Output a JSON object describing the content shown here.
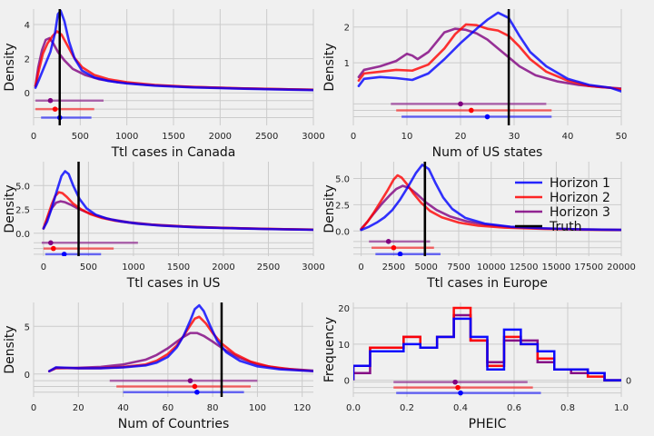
{
  "colors": {
    "horizon1": "#0000ff",
    "horizon2": "#ff0000",
    "horizon3": "#800080",
    "truth": "#000000",
    "background": "#f0f0f0",
    "grid": "#cbcbcb"
  },
  "legend": {
    "placement": "inside panel 4, upper-right",
    "entries": [
      {
        "label": "Horizon 1",
        "color": "#0000ff"
      },
      {
        "label": "Horizon 2",
        "color": "#ff0000"
      },
      {
        "label": "Horizon 3",
        "color": "#800080"
      },
      {
        "label": "Truth",
        "color": "#000000"
      }
    ]
  },
  "chart_data": [
    {
      "type": "line",
      "xlabel": "Ttl cases in Canada",
      "ylabel": "Density",
      "xlim": [
        0,
        3000
      ],
      "ylim": [
        -1.9,
        4.9
      ],
      "xticks": [
        0,
        500,
        1000,
        1500,
        2000,
        2500,
        3000
      ],
      "yticks": [
        0,
        2,
        4
      ],
      "truth": 280,
      "series": [
        {
          "name": "Horizon 1",
          "x": [
            20,
            60,
            120,
            180,
            230,
            260,
            290,
            330,
            380,
            440,
            520,
            650,
            800,
            1000,
            1300,
            1700,
            2200,
            2600,
            3000
          ],
          "y": [
            0.3,
            0.8,
            1.6,
            2.4,
            3.5,
            4.6,
            4.8,
            4.2,
            3.0,
            2.0,
            1.3,
            0.9,
            0.7,
            0.55,
            0.42,
            0.32,
            0.25,
            0.2,
            0.16
          ]
        },
        {
          "name": "Horizon 2",
          "x": [
            20,
            60,
            100,
            150,
            200,
            250,
            300,
            360,
            430,
            520,
            650,
            800,
            1000,
            1300,
            1700,
            2200,
            2600,
            3000
          ],
          "y": [
            0.4,
            1.4,
            2.3,
            2.9,
            3.3,
            3.6,
            3.4,
            2.8,
            2.1,
            1.5,
            1.05,
            0.8,
            0.62,
            0.46,
            0.35,
            0.27,
            0.22,
            0.18
          ]
        },
        {
          "name": "Horizon 3",
          "x": [
            20,
            50,
            90,
            130,
            170,
            210,
            260,
            330,
            420,
            550,
            700,
            900,
            1200,
            1600,
            2100,
            2600,
            3000
          ],
          "y": [
            0.4,
            1.5,
            2.5,
            3.1,
            3.2,
            2.9,
            2.4,
            1.9,
            1.4,
            1.05,
            0.8,
            0.62,
            0.47,
            0.36,
            0.28,
            0.22,
            0.18
          ]
        }
      ],
      "intervals": [
        {
          "name": "Horizon 3",
          "y": -0.45,
          "lo": 20,
          "hi": 750,
          "point": 180
        },
        {
          "name": "Horizon 2",
          "y": -0.95,
          "lo": 20,
          "hi": 650,
          "point": 230
        },
        {
          "name": "Horizon 1",
          "y": -1.45,
          "lo": 80,
          "hi": 620,
          "point": 280
        }
      ]
    },
    {
      "type": "line",
      "xlabel": "Num of US states",
      "ylabel": "Density",
      "xlim": [
        0,
        50
      ],
      "ylim": [
        -0.75,
        2.5
      ],
      "xticks": [
        0,
        10,
        20,
        30,
        40,
        50
      ],
      "yticks": [
        1,
        2
      ],
      "truth": 29,
      "series": [
        {
          "name": "Horizon 1",
          "x": [
            1,
            2,
            5,
            8,
            11,
            14,
            17,
            20,
            23,
            25,
            27,
            29,
            31,
            33,
            36,
            40,
            44,
            48,
            50
          ],
          "y": [
            0.35,
            0.55,
            0.6,
            0.57,
            0.52,
            0.7,
            1.1,
            1.55,
            1.95,
            2.2,
            2.4,
            2.25,
            1.75,
            1.3,
            0.9,
            0.55,
            0.38,
            0.3,
            0.2
          ]
        },
        {
          "name": "Horizon 2",
          "x": [
            1,
            2,
            5,
            8,
            11,
            14,
            17,
            19,
            21,
            23,
            25,
            27,
            29,
            31,
            33,
            36,
            40,
            44,
            48,
            50
          ],
          "y": [
            0.5,
            0.7,
            0.75,
            0.8,
            0.78,
            0.95,
            1.4,
            1.8,
            2.07,
            2.05,
            1.95,
            1.9,
            1.75,
            1.45,
            1.1,
            0.75,
            0.5,
            0.35,
            0.3,
            0.25
          ]
        },
        {
          "name": "Horizon 3",
          "x": [
            1,
            2,
            5,
            8,
            10,
            11,
            12,
            14,
            17,
            19,
            21,
            23,
            25,
            27,
            29,
            31,
            34,
            38,
            42,
            46,
            50
          ],
          "y": [
            0.6,
            0.8,
            0.9,
            1.05,
            1.25,
            1.2,
            1.1,
            1.3,
            1.85,
            1.95,
            1.92,
            1.82,
            1.65,
            1.4,
            1.15,
            0.9,
            0.65,
            0.48,
            0.38,
            0.32,
            0.28
          ]
        }
      ],
      "intervals": [
        {
          "name": "Horizon 3",
          "y": -0.15,
          "lo": 7,
          "hi": 36,
          "point": 20
        },
        {
          "name": "Horizon 2",
          "y": -0.33,
          "lo": 8,
          "hi": 37,
          "point": 22
        },
        {
          "name": "Horizon 1",
          "y": -0.51,
          "lo": 9,
          "hi": 37,
          "point": 25
        }
      ]
    },
    {
      "type": "line",
      "xlabel": "Ttl cases in US",
      "ylabel": "Density",
      "xlim": [
        -110,
        3000
      ],
      "ylim": [
        -2.4,
        7.5
      ],
      "xticks": [
        0,
        500,
        1000,
        1500,
        2000,
        2500,
        3000
      ],
      "yticks": [
        0.0,
        2.5,
        5.0
      ],
      "truth": 390,
      "series": [
        {
          "name": "Horizon 1",
          "x": [
            0,
            40,
            90,
            150,
            200,
            240,
            280,
            330,
            400,
            480,
            580,
            700,
            850,
            1050,
            1300,
            1700,
            2200,
            2600,
            3000
          ],
          "y": [
            0.5,
            1.2,
            2.6,
            4.5,
            6.0,
            6.5,
            6.2,
            5.0,
            3.6,
            2.6,
            1.95,
            1.55,
            1.25,
            1.0,
            0.8,
            0.62,
            0.5,
            0.42,
            0.36
          ]
        },
        {
          "name": "Horizon 2",
          "x": [
            0,
            40,
            90,
            130,
            170,
            210,
            260,
            330,
            420,
            520,
            650,
            800,
            1000,
            1300,
            1700,
            2200,
            2600,
            3000
          ],
          "y": [
            0.5,
            1.6,
            3.0,
            3.9,
            4.3,
            4.2,
            3.8,
            3.1,
            2.5,
            2.0,
            1.6,
            1.3,
            1.05,
            0.82,
            0.64,
            0.52,
            0.44,
            0.38
          ]
        },
        {
          "name": "Horizon 3",
          "x": [
            0,
            40,
            90,
            140,
            190,
            240,
            300,
            380,
            480,
            600,
            750,
            950,
            1200,
            1550,
            2000,
            2500,
            3000
          ],
          "y": [
            0.5,
            1.5,
            2.6,
            3.2,
            3.35,
            3.25,
            3.0,
            2.6,
            2.2,
            1.8,
            1.45,
            1.15,
            0.92,
            0.72,
            0.56,
            0.45,
            0.38
          ]
        }
      ],
      "intervals": [
        {
          "name": "Horizon 3",
          "y": -1.0,
          "lo": -20,
          "hi": 1050,
          "point": 80
        },
        {
          "name": "Horizon 2",
          "y": -1.6,
          "lo": 0,
          "hi": 780,
          "point": 110
        },
        {
          "name": "Horizon 1",
          "y": -2.2,
          "lo": 20,
          "hi": 640,
          "point": 230
        }
      ]
    },
    {
      "type": "line",
      "xlabel": "Ttl cases in Europe",
      "ylabel": "Density",
      "xlim": [
        -600,
        20000
      ],
      "ylim": [
        -2.4,
        6.6
      ],
      "xticks": [
        0,
        2500,
        5000,
        7500,
        10000,
        12500,
        15000,
        17500,
        20000
      ],
      "yticks": [
        0.0,
        2.5,
        5.0
      ],
      "truth": 4900,
      "series": [
        {
          "name": "Horizon 1",
          "x": [
            0,
            600,
            1200,
            1800,
            2400,
            3000,
            3600,
            4200,
            4700,
            5200,
            5700,
            6300,
            7000,
            8000,
            9500,
            11500,
            14000,
            17000,
            20000
          ],
          "y": [
            0.1,
            0.4,
            0.8,
            1.3,
            2.0,
            3.0,
            4.2,
            5.5,
            6.3,
            5.9,
            4.6,
            3.2,
            2.1,
            1.25,
            0.7,
            0.4,
            0.25,
            0.15,
            0.1
          ]
        },
        {
          "name": "Horizon 2",
          "x": [
            0,
            500,
            1000,
            1500,
            2000,
            2500,
            2800,
            3100,
            3500,
            4000,
            4600,
            5300,
            6200,
            7500,
            9000,
            11000,
            14000,
            17000,
            20000
          ],
          "y": [
            0.15,
            0.9,
            1.8,
            2.8,
            3.8,
            4.9,
            5.3,
            5.1,
            4.5,
            3.6,
            2.7,
            1.9,
            1.3,
            0.8,
            0.5,
            0.32,
            0.2,
            0.13,
            0.09
          ]
        },
        {
          "name": "Horizon 3",
          "x": [
            0,
            500,
            1000,
            1600,
            2200,
            2700,
            3200,
            3700,
            4300,
            5000,
            5800,
            6800,
            8000,
            9500,
            11500,
            14000,
            17000,
            20000
          ],
          "y": [
            0.2,
            0.9,
            1.7,
            2.6,
            3.4,
            4.0,
            4.3,
            4.1,
            3.5,
            2.7,
            2.0,
            1.4,
            0.95,
            0.6,
            0.38,
            0.24,
            0.15,
            0.1
          ]
        }
      ],
      "intervals": [
        {
          "name": "Horizon 3",
          "y": -1.0,
          "lo": 600,
          "hi": 5300,
          "point": 2100
        },
        {
          "name": "Horizon 2",
          "y": -1.6,
          "lo": 800,
          "hi": 5600,
          "point": 2500
        },
        {
          "name": "Horizon 1",
          "y": -2.2,
          "lo": 1100,
          "hi": 6100,
          "point": 3000
        }
      ]
    },
    {
      "type": "line",
      "xlabel": "Num of Countries",
      "ylabel": "Density",
      "xlim": [
        0,
        125
      ],
      "ylim": [
        -2.4,
        7.5
      ],
      "xticks": [
        0,
        20,
        40,
        60,
        80,
        100,
        120
      ],
      "yticks": [
        0,
        5
      ],
      "truth": 84,
      "series": [
        {
          "name": "Horizon 1",
          "x": [
            7,
            10,
            20,
            30,
            40,
            50,
            55,
            60,
            64,
            67,
            70,
            72,
            74,
            76,
            79,
            82,
            86,
            92,
            100,
            110,
            125
          ],
          "y": [
            0.3,
            0.7,
            0.6,
            0.6,
            0.7,
            0.9,
            1.2,
            1.8,
            2.8,
            4.0,
            5.6,
            6.8,
            7.2,
            6.6,
            5.0,
            3.5,
            2.3,
            1.4,
            0.8,
            0.5,
            0.3
          ]
        },
        {
          "name": "Horizon 2",
          "x": [
            7,
            10,
            20,
            30,
            40,
            50,
            55,
            60,
            64,
            67,
            70,
            72,
            74,
            77,
            80,
            84,
            90,
            97,
            105,
            115,
            125
          ],
          "y": [
            0.3,
            0.65,
            0.6,
            0.62,
            0.75,
            1.0,
            1.4,
            2.1,
            3.0,
            4.0,
            5.1,
            5.8,
            6.0,
            5.3,
            4.3,
            3.2,
            2.1,
            1.3,
            0.8,
            0.5,
            0.3
          ]
        },
        {
          "name": "Horizon 3",
          "x": [
            7,
            10,
            20,
            30,
            40,
            50,
            55,
            60,
            64,
            67,
            70,
            73,
            76,
            80,
            85,
            92,
            100,
            110,
            125
          ],
          "y": [
            0.3,
            0.6,
            0.65,
            0.75,
            1.0,
            1.5,
            2.0,
            2.7,
            3.4,
            3.9,
            4.3,
            4.3,
            4.0,
            3.4,
            2.6,
            1.7,
            1.0,
            0.6,
            0.35
          ]
        }
      ],
      "intervals": [
        {
          "name": "Horizon 3",
          "y": -0.7,
          "lo": 34,
          "hi": 100,
          "point": 70
        },
        {
          "name": "Horizon 2",
          "y": -1.3,
          "lo": 37,
          "hi": 97,
          "point": 72
        },
        {
          "name": "Horizon 1",
          "y": -1.9,
          "lo": 40,
          "hi": 94,
          "point": 73
        }
      ]
    },
    {
      "type": "line",
      "subtype": "step-histogram",
      "xlabel": "PHEIC",
      "ylabel": "Frequency",
      "xlim": [
        0,
        1
      ],
      "ylim": [
        -4.6,
        21.5
      ],
      "xticks": [
        0.0,
        0.2,
        0.4,
        0.6,
        0.8,
        1.0
      ],
      "yticks": [
        0,
        10,
        20
      ],
      "bin_edges": [
        0.0,
        0.0625,
        0.125,
        0.1875,
        0.25,
        0.3125,
        0.375,
        0.4375,
        0.5,
        0.5625,
        0.625,
        0.6875,
        0.75,
        0.8125,
        0.875,
        0.9375,
        1.0
      ],
      "series": [
        {
          "name": "Horizon 1",
          "values": [
            4,
            8,
            8,
            10,
            9,
            12,
            17,
            12,
            3,
            14,
            10,
            8,
            3,
            3,
            2,
            0
          ]
        },
        {
          "name": "Horizon 2",
          "values": [
            4,
            9,
            9,
            12,
            9,
            12,
            20,
            11,
            4,
            12,
            10,
            6,
            3,
            3,
            1,
            0
          ]
        },
        {
          "name": "Horizon 3",
          "values": [
            2,
            9,
            9,
            12,
            9,
            12,
            18,
            11,
            5,
            11,
            11,
            5,
            3,
            2,
            2,
            0
          ]
        }
      ],
      "intervals": [
        {
          "name": "Horizon 3",
          "y": -0.5,
          "lo": 0.15,
          "hi": 0.65,
          "point": 0.38
        },
        {
          "name": "Horizon 2",
          "y": -2.0,
          "lo": 0.15,
          "hi": 0.67,
          "point": 0.39
        },
        {
          "name": "Horizon 1",
          "y": -3.5,
          "lo": 0.16,
          "hi": 0.7,
          "point": 0.4
        }
      ]
    }
  ]
}
